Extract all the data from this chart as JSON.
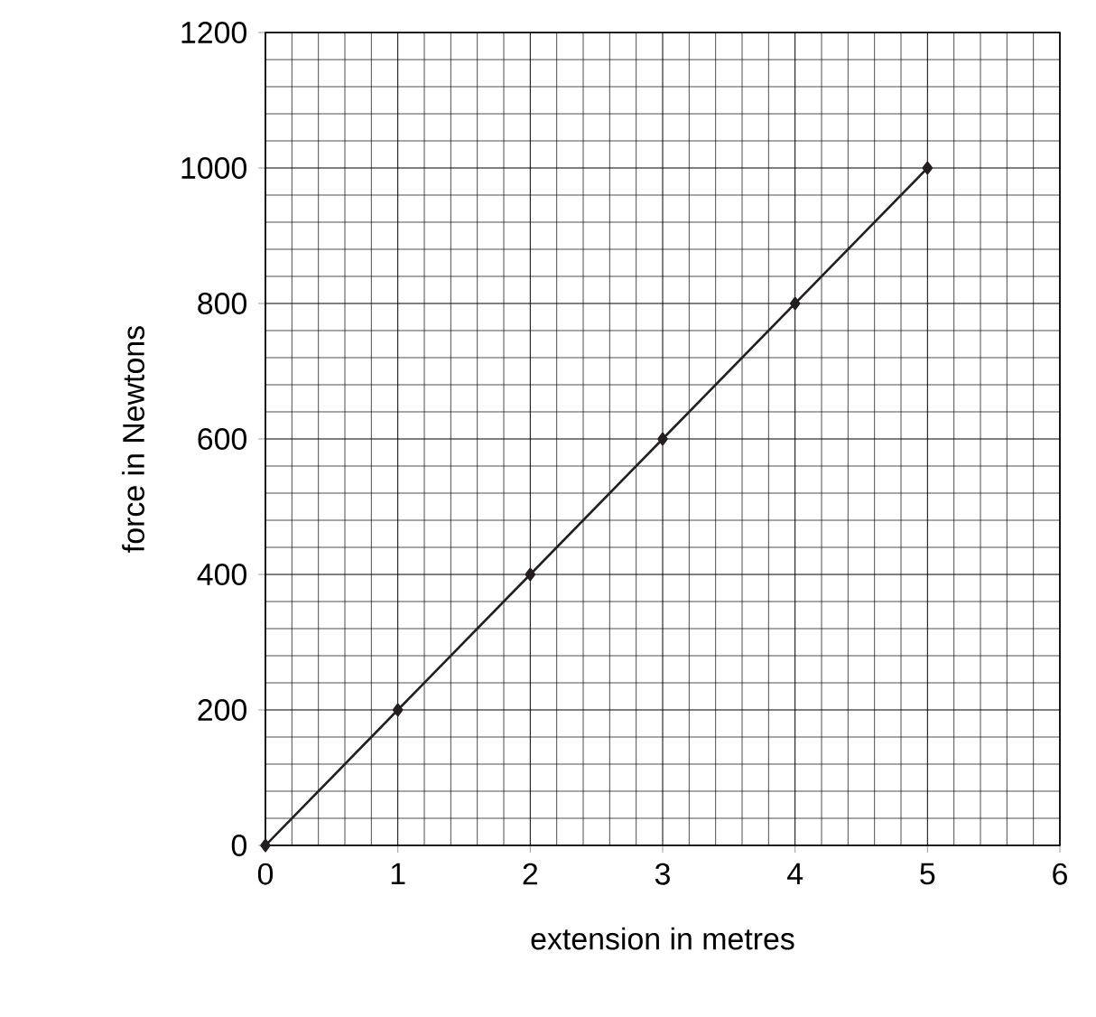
{
  "chart_data": {
    "type": "line",
    "xlabel": "extension in metres",
    "ylabel": "force in Newtons",
    "x": [
      0,
      1,
      2,
      3,
      4,
      5
    ],
    "series": [
      {
        "color": "#231f20",
        "values": [
          0,
          200,
          400,
          600,
          800,
          1000
        ]
      }
    ],
    "xlim": [
      0,
      6
    ],
    "ylim": [
      0,
      1200
    ],
    "xticks": [
      0,
      1,
      2,
      3,
      4,
      5,
      6
    ],
    "yticks": [
      0,
      200,
      400,
      600,
      800,
      1000,
      1200
    ],
    "grid": true,
    "marker": "diamond",
    "line_style": "solid"
  }
}
